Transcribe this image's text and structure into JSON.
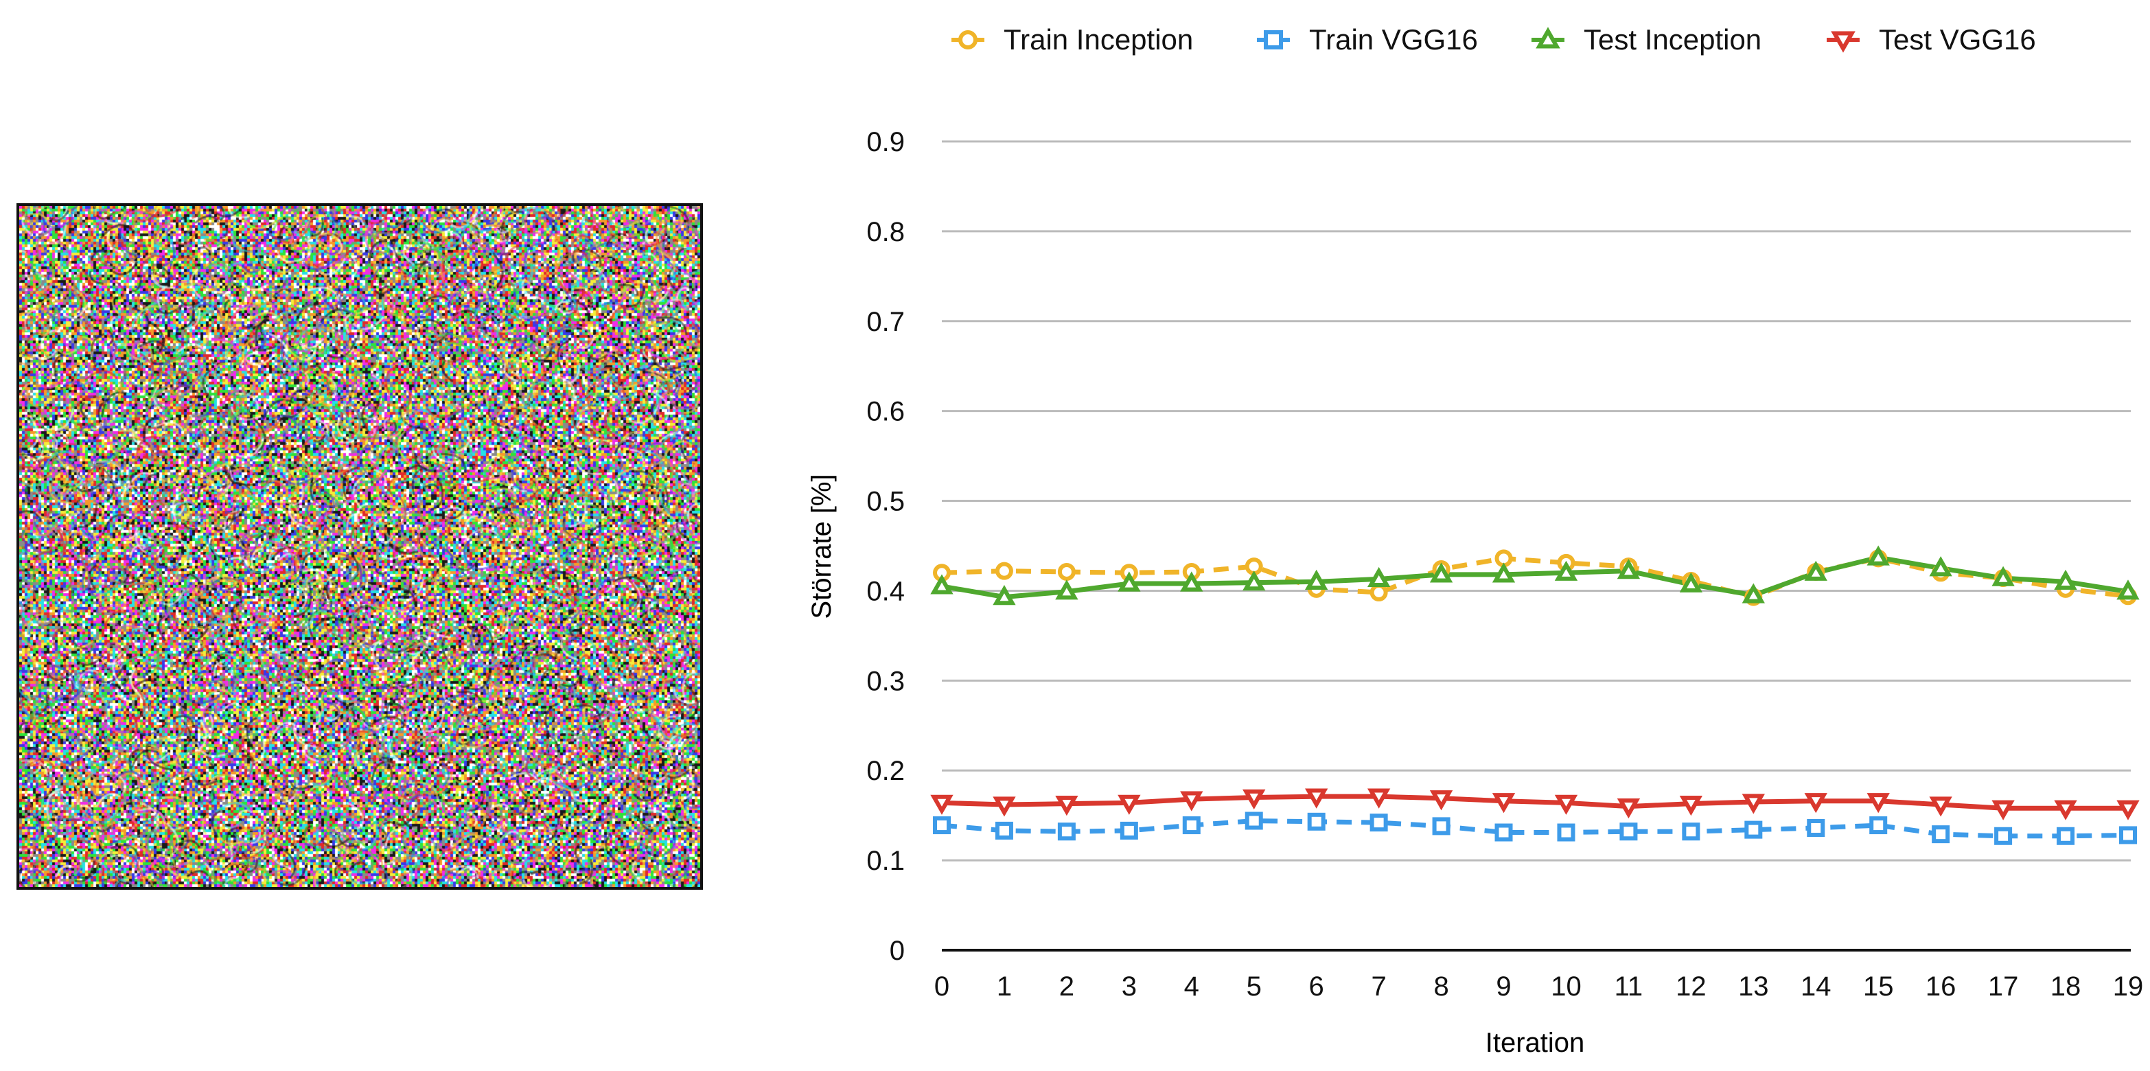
{
  "chart_data": {
    "type": "line",
    "title": "",
    "xlabel": "Iteration",
    "ylabel": "Störrate [%]",
    "x": [
      0,
      1,
      2,
      3,
      4,
      5,
      6,
      7,
      8,
      9,
      10,
      11,
      12,
      13,
      14,
      15,
      16,
      17,
      18,
      19
    ],
    "x_tick_labels": [
      "0",
      "1",
      "2",
      "3",
      "4",
      "5",
      "6",
      "7",
      "8",
      "9",
      "10",
      "11",
      "12",
      "13",
      "14",
      "15",
      "16",
      "17",
      "18",
      "19"
    ],
    "y_tick_labels": [
      "0",
      "0.1",
      "0.2",
      "0.3",
      "0.4",
      "0.5",
      "0.6",
      "0.7",
      "0.8",
      "0.9"
    ],
    "y_ticks": [
      0,
      0.1,
      0.2,
      0.3,
      0.4,
      0.5,
      0.6,
      0.7,
      0.8,
      0.9
    ],
    "ylim": [
      0,
      0.9
    ],
    "grid": true,
    "legend_position": "top",
    "series": [
      {
        "name": "Train Inception",
        "color": "#F0B429",
        "line_style": "dashed",
        "marker": "circle",
        "values": [
          0.42,
          0.422,
          0.421,
          0.42,
          0.421,
          0.427,
          0.402,
          0.398,
          0.424,
          0.436,
          0.431,
          0.427,
          0.411,
          0.393,
          0.421,
          0.436,
          0.42,
          0.414,
          0.402,
          0.394
        ]
      },
      {
        "name": "Train VGG16",
        "color": "#3D9BE9",
        "line_style": "dashed",
        "marker": "square",
        "values": [
          0.139,
          0.133,
          0.132,
          0.133,
          0.139,
          0.144,
          0.143,
          0.142,
          0.138,
          0.131,
          0.131,
          0.132,
          0.132,
          0.134,
          0.136,
          0.139,
          0.129,
          0.127,
          0.127,
          0.128
        ]
      },
      {
        "name": "Test Inception",
        "color": "#4FA82E",
        "line_style": "solid",
        "marker": "triangle-up",
        "values": [
          0.405,
          0.393,
          0.399,
          0.408,
          0.408,
          0.409,
          0.41,
          0.413,
          0.418,
          0.418,
          0.42,
          0.422,
          0.407,
          0.395,
          0.42,
          0.437,
          0.425,
          0.414,
          0.41,
          0.399
        ]
      },
      {
        "name": "Test VGG16",
        "color": "#D9382E",
        "line_style": "solid",
        "marker": "triangle-down",
        "values": [
          0.164,
          0.162,
          0.163,
          0.164,
          0.168,
          0.17,
          0.171,
          0.171,
          0.169,
          0.166,
          0.164,
          0.16,
          0.163,
          0.165,
          0.166,
          0.166,
          0.162,
          0.158,
          0.158,
          0.158
        ]
      }
    ]
  },
  "colors": {
    "grid": "#BBBBBB",
    "axis": "#111111",
    "text": "#111111"
  },
  "noise_image": {
    "kind": "adversarial-perturbation-noise",
    "palette": [
      "#f02ce8",
      "#25e0e6",
      "#2ee33a",
      "#f4ed3a",
      "#1a1a1a",
      "#ffffff",
      "#e12a2a",
      "#3a3ae8",
      "#8a8a8a",
      "#f59a2a"
    ]
  }
}
